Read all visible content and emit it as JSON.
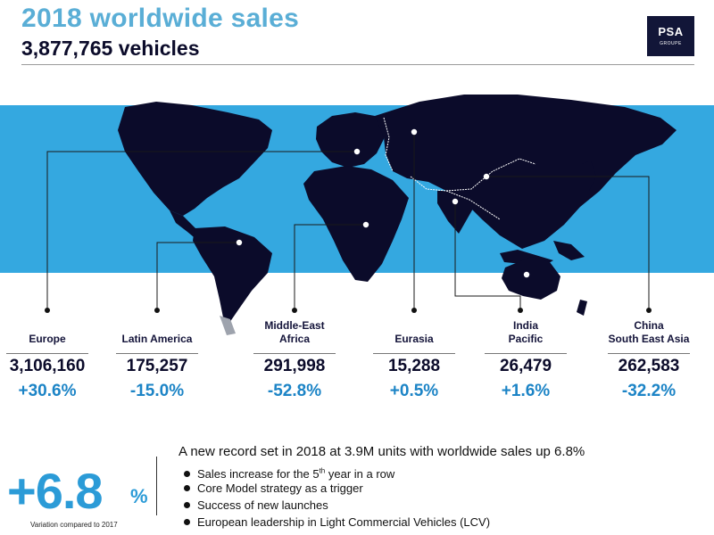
{
  "header": {
    "title": "2018 worldwide sales",
    "subtitle": "3,877,765 vehicles"
  },
  "logo": {
    "name": "PSA",
    "tagline": "GROUPE"
  },
  "colors": {
    "accent": "#34a8e0",
    "highlight": "#2b9bd7",
    "map": "#0b0b2a",
    "growth_text": "#1c84c6"
  },
  "regions": [
    {
      "name": "Europe",
      "sales": "3,106,160",
      "variation": "+30.6%"
    },
    {
      "name": "Latin America",
      "sales": "175,257",
      "variation": "-15.0%"
    },
    {
      "name": "Middle-East\nAfrica",
      "sales": "291,998",
      "variation": "-52.8%"
    },
    {
      "name": "Eurasia",
      "sales": "15,288",
      "variation": "+0.5%"
    },
    {
      "name": "India\nPacific",
      "sales": "26,479",
      "variation": "+1.6%"
    },
    {
      "name": "China\nSouth East Asia",
      "sales": "262,583",
      "variation": "-32.2%"
    }
  ],
  "summary": {
    "big_value": "+6.8",
    "big_unit": "%",
    "note": "Variation compared to 2017",
    "headline": "A new record set in 2018 at 3.9M units with worldwide sales up 6.8%",
    "bullets": [
      "Sales increase for the 5th year in a row",
      "Core Model strategy as a trigger",
      "Success of new launches",
      "European leadership in Light Commercial Vehicles (LCV)"
    ]
  }
}
